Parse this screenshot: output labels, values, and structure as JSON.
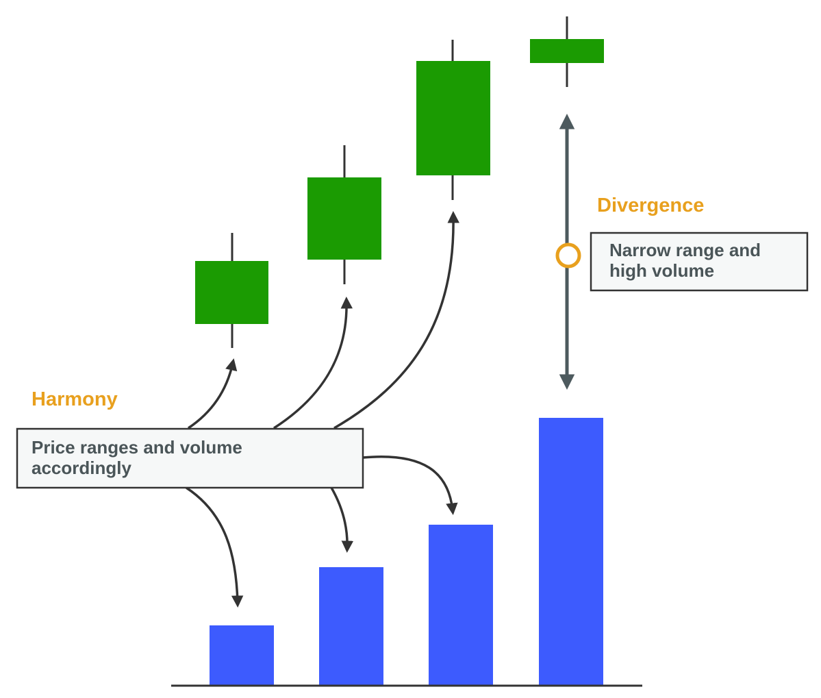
{
  "labels": {
    "harmony": "Harmony",
    "divergence": "Divergence",
    "harmony_box": [
      "Price ranges and volume",
      "accordingly"
    ],
    "divergence_box": [
      "Narrow range and",
      "high volume"
    ]
  },
  "colors": {
    "candle": "#1b9b02",
    "volume_bar": "#3d5bfe",
    "accent_orange": "#e8a01e",
    "arrow": "#333333",
    "divergence_arrow": "#4d5a5e",
    "box_text": "#4a5558",
    "box_border": "#333333",
    "box_fill": "#f6f8f8"
  }
}
